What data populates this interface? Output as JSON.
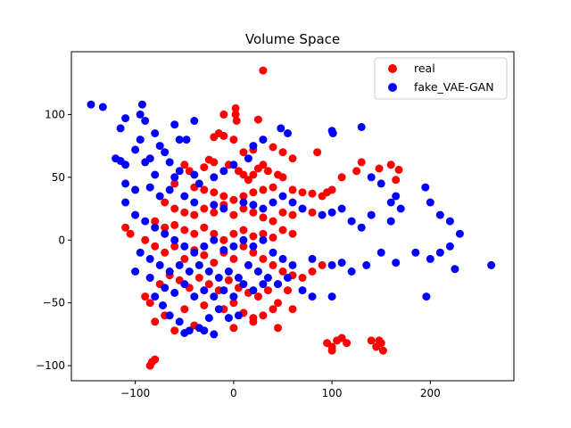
{
  "chart_data": {
    "type": "scatter",
    "title": "Volume Space",
    "xlabel": "",
    "ylabel": "",
    "xlim": [
      -165,
      285
    ],
    "ylim": [
      -112,
      150
    ],
    "xticks": [
      -100,
      0,
      100,
      200
    ],
    "yticks": [
      -100,
      -50,
      0,
      50,
      100
    ],
    "legend_position": "top-right",
    "grid": false,
    "series": [
      {
        "name": "real",
        "color": "#ff0000",
        "points": [
          [
            30,
            135
          ],
          [
            2,
            105
          ],
          [
            2,
            100
          ],
          [
            -10,
            100
          ],
          [
            3,
            95
          ],
          [
            25,
            96
          ],
          [
            -20,
            82
          ],
          [
            -15,
            85
          ],
          [
            -10,
            83
          ],
          [
            0,
            80
          ],
          [
            10,
            70
          ],
          [
            20,
            72
          ],
          [
            40,
            74
          ],
          [
            50,
            70
          ],
          [
            60,
            65
          ],
          [
            85,
            70
          ],
          [
            -50,
            60
          ],
          [
            -45,
            55
          ],
          [
            -30,
            58
          ],
          [
            -25,
            64
          ],
          [
            -20,
            62
          ],
          [
            -5,
            60
          ],
          [
            5,
            55
          ],
          [
            10,
            52
          ],
          [
            15,
            48
          ],
          [
            20,
            52
          ],
          [
            25,
            57
          ],
          [
            30,
            60
          ],
          [
            35,
            55
          ],
          [
            45,
            52
          ],
          [
            50,
            50
          ],
          [
            -60,
            45
          ],
          [
            -40,
            42
          ],
          [
            -30,
            40
          ],
          [
            -20,
            38
          ],
          [
            -10,
            35
          ],
          [
            0,
            32
          ],
          [
            10,
            35
          ],
          [
            20,
            38
          ],
          [
            30,
            40
          ],
          [
            40,
            42
          ],
          [
            60,
            40
          ],
          [
            70,
            38
          ],
          [
            80,
            37
          ],
          [
            90,
            35
          ],
          [
            95,
            38
          ],
          [
            100,
            40
          ],
          [
            110,
            50
          ],
          [
            125,
            55
          ],
          [
            130,
            62
          ],
          [
            148,
            57
          ],
          [
            160,
            60
          ],
          [
            168,
            56
          ],
          [
            165,
            48
          ],
          [
            -70,
            30
          ],
          [
            -60,
            25
          ],
          [
            -50,
            22
          ],
          [
            -40,
            20
          ],
          [
            -30,
            25
          ],
          [
            -20,
            22
          ],
          [
            -10,
            28
          ],
          [
            0,
            20
          ],
          [
            10,
            25
          ],
          [
            20,
            22
          ],
          [
            30,
            18
          ],
          [
            40,
            15
          ],
          [
            50,
            22
          ],
          [
            60,
            20
          ],
          [
            70,
            25
          ],
          [
            80,
            22
          ],
          [
            -80,
            15
          ],
          [
            -70,
            10
          ],
          [
            -60,
            12
          ],
          [
            -50,
            8
          ],
          [
            -40,
            5
          ],
          [
            -30,
            10
          ],
          [
            -20,
            5
          ],
          [
            -10,
            0
          ],
          [
            0,
            5
          ],
          [
            10,
            8
          ],
          [
            20,
            3
          ],
          [
            30,
            5
          ],
          [
            40,
            2
          ],
          [
            50,
            8
          ],
          [
            60,
            5
          ],
          [
            -110,
            10
          ],
          [
            -105,
            5
          ],
          [
            -90,
            0
          ],
          [
            -80,
            -5
          ],
          [
            -70,
            -10
          ],
          [
            -60,
            -5
          ],
          [
            -50,
            -15
          ],
          [
            -40,
            -8
          ],
          [
            -30,
            -12
          ],
          [
            -20,
            -18
          ],
          [
            -10,
            -10
          ],
          [
            0,
            -15
          ],
          [
            10,
            -5
          ],
          [
            20,
            -10
          ],
          [
            30,
            -15
          ],
          [
            40,
            -20
          ],
          [
            50,
            -25
          ],
          [
            60,
            -28
          ],
          [
            70,
            -30
          ],
          [
            80,
            -25
          ],
          [
            90,
            -20
          ],
          [
            -85,
            -30
          ],
          [
            -75,
            -35
          ],
          [
            -65,
            -28
          ],
          [
            -55,
            -32
          ],
          [
            -45,
            -38
          ],
          [
            -35,
            -30
          ],
          [
            -25,
            -35
          ],
          [
            -15,
            -40
          ],
          [
            -5,
            -32
          ],
          [
            5,
            -38
          ],
          [
            15,
            -42
          ],
          [
            25,
            -45
          ],
          [
            35,
            -40
          ],
          [
            45,
            -35
          ],
          [
            55,
            -40
          ],
          [
            -90,
            -45
          ],
          [
            -85,
            -50
          ],
          [
            -50,
            -55
          ],
          [
            -30,
            -52
          ],
          [
            -10,
            -55
          ],
          [
            0,
            -50
          ],
          [
            10,
            -58
          ],
          [
            20,
            -62
          ],
          [
            30,
            -60
          ],
          [
            40,
            -55
          ],
          [
            45,
            -50
          ],
          [
            60,
            -55
          ],
          [
            -80,
            -65
          ],
          [
            -70,
            -60
          ],
          [
            -60,
            -72
          ],
          [
            -40,
            -68
          ],
          [
            0,
            -70
          ],
          [
            20,
            -65
          ],
          [
            45,
            -70
          ],
          [
            -85,
            -100
          ],
          [
            -83,
            -97
          ],
          [
            -80,
            -95
          ],
          [
            95,
            -82
          ],
          [
            100,
            -85
          ],
          [
            105,
            -80
          ],
          [
            110,
            -78
          ],
          [
            115,
            -82
          ],
          [
            140,
            -80
          ],
          [
            145,
            -85
          ],
          [
            150,
            -82
          ],
          [
            152,
            -88
          ],
          [
            148,
            -80
          ],
          [
            100,
            -88
          ]
        ]
      },
      {
        "name": "fake_VAE-GAN",
        "color": "#0000ff",
        "points": [
          [
            -145,
            108
          ],
          [
            -133,
            106
          ],
          [
            -93,
            108
          ],
          [
            -95,
            100
          ],
          [
            -110,
            97
          ],
          [
            -115,
            89
          ],
          [
            -90,
            95
          ],
          [
            -80,
            85
          ],
          [
            -60,
            92
          ],
          [
            -40,
            95
          ],
          [
            -55,
            80
          ],
          [
            -48,
            80
          ],
          [
            -95,
            80
          ],
          [
            -75,
            75
          ],
          [
            -70,
            70
          ],
          [
            -100,
            72
          ],
          [
            -110,
            60
          ],
          [
            -120,
            65
          ],
          [
            -115,
            63
          ],
          [
            -90,
            62
          ],
          [
            -85,
            65
          ],
          [
            -65,
            62
          ],
          [
            -55,
            55
          ],
          [
            -80,
            52
          ],
          [
            -60,
            50
          ],
          [
            -40,
            52
          ],
          [
            -35,
            45
          ],
          [
            -20,
            50
          ],
          [
            -10,
            55
          ],
          [
            0,
            60
          ],
          [
            15,
            65
          ],
          [
            20,
            75
          ],
          [
            30,
            80
          ],
          [
            48,
            89
          ],
          [
            55,
            85
          ],
          [
            100,
            87
          ],
          [
            101,
            85
          ],
          [
            130,
            90
          ],
          [
            -110,
            45
          ],
          [
            -100,
            40
          ],
          [
            -85,
            42
          ],
          [
            -75,
            35
          ],
          [
            -65,
            40
          ],
          [
            -50,
            35
          ],
          [
            -40,
            30
          ],
          [
            -20,
            28
          ],
          [
            -10,
            25
          ],
          [
            10,
            30
          ],
          [
            20,
            28
          ],
          [
            30,
            25
          ],
          [
            40,
            30
          ],
          [
            50,
            35
          ],
          [
            60,
            30
          ],
          [
            70,
            25
          ],
          [
            90,
            20
          ],
          [
            100,
            22
          ],
          [
            110,
            25
          ],
          [
            120,
            15
          ],
          [
            130,
            10
          ],
          [
            140,
            20
          ],
          [
            160,
            15
          ],
          [
            170,
            25
          ],
          [
            195,
            42
          ],
          [
            200,
            30
          ],
          [
            210,
            20
          ],
          [
            220,
            15
          ],
          [
            230,
            5
          ],
          [
            220,
            -5
          ],
          [
            210,
            -10
          ],
          [
            200,
            -15
          ],
          [
            196,
            -45
          ],
          [
            225,
            -23
          ],
          [
            262,
            -20
          ],
          [
            -110,
            30
          ],
          [
            -100,
            20
          ],
          [
            -90,
            15
          ],
          [
            -80,
            10
          ],
          [
            -70,
            5
          ],
          [
            -60,
            0
          ],
          [
            -50,
            -5
          ],
          [
            -40,
            -10
          ],
          [
            -30,
            -5
          ],
          [
            -20,
            0
          ],
          [
            -10,
            -8
          ],
          [
            0,
            -5
          ],
          [
            10,
            0
          ],
          [
            20,
            -5
          ],
          [
            30,
            0
          ],
          [
            40,
            -10
          ],
          [
            50,
            -15
          ],
          [
            60,
            -20
          ],
          [
            80,
            -15
          ],
          [
            100,
            -20
          ],
          [
            110,
            -18
          ],
          [
            120,
            -25
          ],
          [
            135,
            -20
          ],
          [
            150,
            -10
          ],
          [
            165,
            -18
          ],
          [
            -95,
            -10
          ],
          [
            -85,
            -15
          ],
          [
            -75,
            -20
          ],
          [
            -65,
            -25
          ],
          [
            -55,
            -20
          ],
          [
            -45,
            -25
          ],
          [
            -35,
            -20
          ],
          [
            -25,
            -25
          ],
          [
            -15,
            -30
          ],
          [
            -5,
            -25
          ],
          [
            5,
            -30
          ],
          [
            15,
            -20
          ],
          [
            25,
            -25
          ],
          [
            35,
            -30
          ],
          [
            45,
            -35
          ],
          [
            55,
            -30
          ],
          [
            70,
            -40
          ],
          [
            80,
            -45
          ],
          [
            100,
            -45
          ],
          [
            -100,
            -25
          ],
          [
            -80,
            -45
          ],
          [
            -70,
            -38
          ],
          [
            -60,
            -42
          ],
          [
            -50,
            -35
          ],
          [
            -40,
            -45
          ],
          [
            -30,
            -40
          ],
          [
            -20,
            -45
          ],
          [
            -10,
            -40
          ],
          [
            0,
            -45
          ],
          [
            10,
            -35
          ],
          [
            20,
            -40
          ],
          [
            30,
            -35
          ],
          [
            -65,
            -60
          ],
          [
            -55,
            -65
          ],
          [
            -45,
            -72
          ],
          [
            -35,
            -70
          ],
          [
            -25,
            -62
          ],
          [
            -15,
            -55
          ],
          [
            -5,
            -62
          ],
          [
            5,
            -60
          ],
          [
            -50,
            -74
          ],
          [
            -30,
            -72
          ],
          [
            -20,
            -75
          ],
          [
            -85,
            -30
          ],
          [
            -72,
            -52
          ],
          [
            140,
            50
          ],
          [
            150,
            45
          ],
          [
            160,
            30
          ],
          [
            185,
            -10
          ],
          [
            165,
            35
          ]
        ]
      }
    ]
  }
}
